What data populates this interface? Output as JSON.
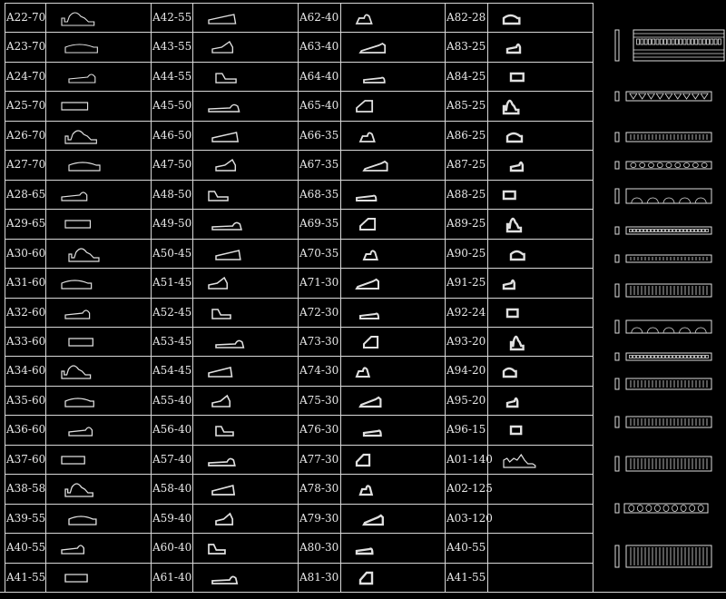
{
  "table": {
    "columns": [
      [
        "A22-70",
        "A23-70",
        "A24-70",
        "A25-70",
        "A26-70",
        "A27-70",
        "A28-65",
        "A29-65",
        "A30-60",
        "A31-60",
        "A32-60",
        "A33-60",
        "A34-60",
        "A35-60",
        "A36-60",
        "A37-60",
        "A38-58",
        "A39-55",
        "A40-55",
        "A41-55"
      ],
      [
        "A42-55",
        "A43-55",
        "A44-55",
        "A45-50",
        "A46-50",
        "A47-50",
        "A48-50",
        "A49-50",
        "A50-45",
        "A51-45",
        "A52-45",
        "A53-45",
        "A54-45",
        "A55-40",
        "A56-40",
        "A57-40",
        "A58-40",
        "A59-40",
        "A60-40",
        "A61-40"
      ],
      [
        "A62-40",
        "A63-40",
        "A64-40",
        "A65-40",
        "A66-35",
        "A67-35",
        "A68-35",
        "A69-35",
        "A70-35",
        "A71-30",
        "A72-30",
        "A73-30",
        "A74-30",
        "A75-30",
        "A76-30",
        "A77-30",
        "A78-30",
        "A79-30",
        "A80-30",
        "A81-30"
      ],
      [
        "A82-28",
        "A83-25",
        "A84-25",
        "A85-25",
        "A86-25",
        "A87-25",
        "A88-25",
        "A89-25",
        "A90-25",
        "A91-25",
        "A92-24",
        "A93-20",
        "A94-20",
        "A95-20",
        "A96-15",
        "A01-140",
        "A02-125",
        "A03-120",
        "A40-55",
        "A41-55"
      ]
    ],
    "profiles_shown_in_last_column": 16
  },
  "colors": {
    "background": "#000000",
    "lines": "#d8d8d8",
    "text": "#e8e8e8"
  }
}
